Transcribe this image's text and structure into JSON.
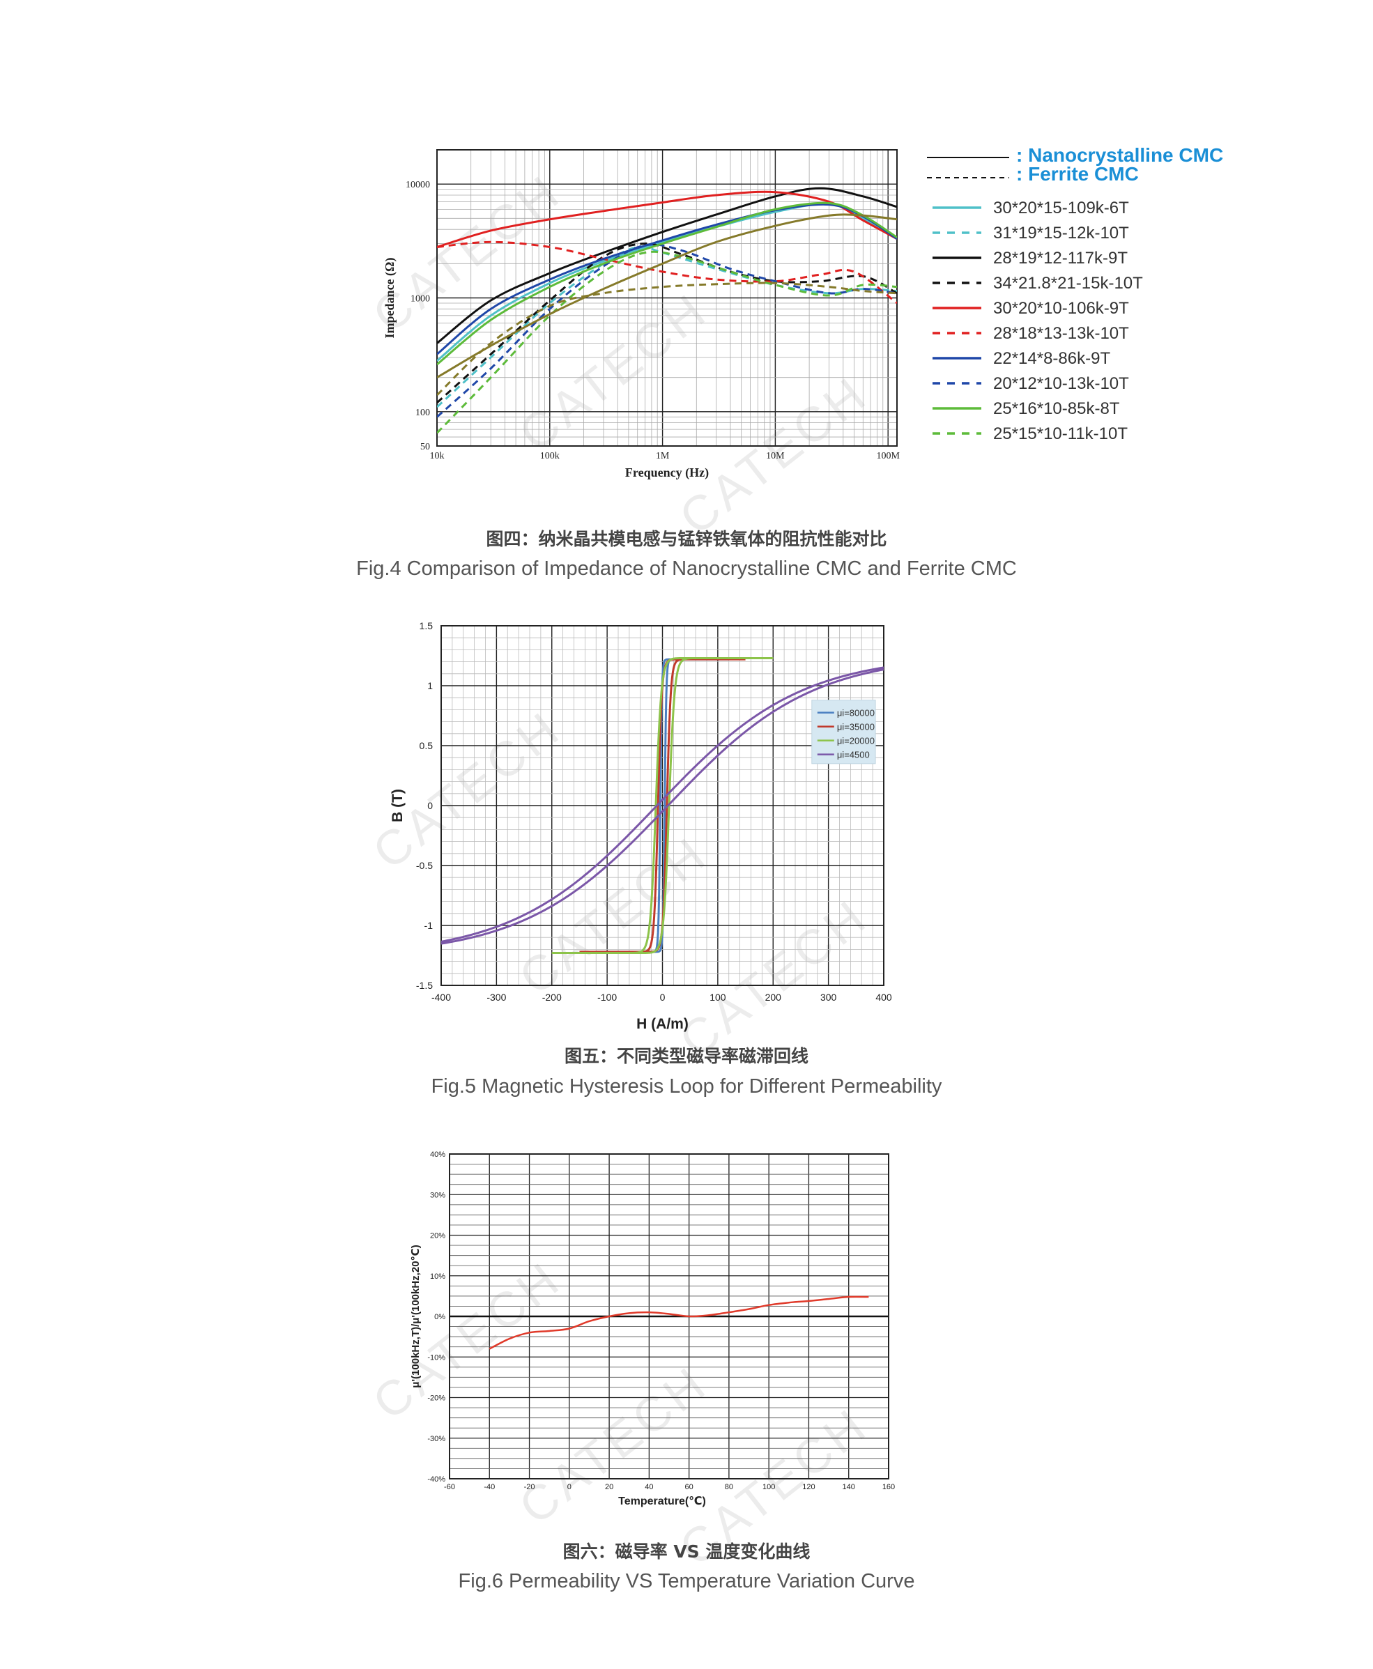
{
  "chart_data": [
    {
      "type": "line",
      "title": "",
      "xlabel": "Frequency (Hz)",
      "ylabel": "Impedance (Ω)",
      "xscale": "log",
      "yscale": "log",
      "xlim": [
        10000,
        120000000
      ],
      "ylim": [
        50,
        20000
      ],
      "xticks": [
        {
          "v": 10000,
          "label": "10k"
        },
        {
          "v": 100000,
          "label": "100k"
        },
        {
          "v": 1000000,
          "label": "1M"
        },
        {
          "v": 10000000,
          "label": "10M"
        },
        {
          "v": 100000000,
          "label": "100M"
        }
      ],
      "yticks": [
        {
          "v": 50,
          "label": "50"
        },
        {
          "v": 100,
          "label": "100"
        },
        {
          "v": 1000,
          "label": "1000"
        },
        {
          "v": 10000,
          "label": "10000"
        }
      ],
      "grid": true,
      "legend_position": "right",
      "legend_title_solid": ": Nanocrystalline CMC",
      "legend_title_dashed": ": Ferrite CMC",
      "series": [
        {
          "name": "30*20*15-109k-6T",
          "color": "#4fc0c8",
          "dash": false,
          "x": [
            10000,
            30000,
            100000,
            300000,
            1000000,
            3000000,
            10000000,
            30000000,
            60000000,
            120000000
          ],
          "y": [
            280,
            700,
            1350,
            2100,
            3100,
            4200,
            5700,
            6700,
            5000,
            3300
          ]
        },
        {
          "name": "31*19*15-12k-10T",
          "color": "#4fc0c8",
          "dash": true,
          "x": [
            10000,
            30000,
            100000,
            300000,
            600000,
            1000000,
            3000000,
            10000000,
            30000000,
            60000000,
            120000000
          ],
          "y": [
            110,
            300,
            900,
            2000,
            2800,
            2500,
            1800,
            1300,
            1100,
            1200,
            1150
          ]
        },
        {
          "name": "28*19*12-117k-9T",
          "color": "#111111",
          "dash": false,
          "x": [
            10000,
            30000,
            100000,
            300000,
            1000000,
            3000000,
            10000000,
            25000000,
            60000000,
            120000000
          ],
          "y": [
            400,
            950,
            1650,
            2500,
            3800,
            5400,
            7800,
            9200,
            7800,
            6300
          ]
        },
        {
          "name": "34*21.8*21-15k-10T",
          "color": "#111111",
          "dash": true,
          "x": [
            10000,
            30000,
            100000,
            300000,
            700000,
            1500000,
            4000000,
            10000000,
            25000000,
            60000000,
            120000000
          ],
          "y": [
            120,
            320,
            950,
            2300,
            3000,
            2400,
            1700,
            1400,
            1400,
            1550,
            1100
          ]
        },
        {
          "name": "30*20*10-106k-9T",
          "color": "#e02020",
          "dash": false,
          "x": [
            10000,
            30000,
            100000,
            300000,
            1000000,
            3000000,
            10000000,
            30000000,
            60000000,
            120000000
          ],
          "y": [
            2800,
            3900,
            4900,
            5800,
            6900,
            8000,
            8500,
            7000,
            4800,
            3300
          ]
        },
        {
          "name": "28*18*13-13k-10T",
          "color": "#e02020",
          "dash": true,
          "x": [
            10000,
            30000,
            100000,
            300000,
            1000000,
            3000000,
            10000000,
            25000000,
            50000000,
            120000000
          ],
          "y": [
            2800,
            3100,
            2800,
            2200,
            1700,
            1450,
            1400,
            1600,
            1700,
            900
          ]
        },
        {
          "name": "22*14*8-86k-9T",
          "color": "#1f47a8",
          "dash": false,
          "x": [
            10000,
            30000,
            100000,
            300000,
            1000000,
            3000000,
            10000000,
            30000000,
            60000000,
            120000000
          ],
          "y": [
            320,
            800,
            1450,
            2200,
            3200,
            4400,
            5900,
            6600,
            5200,
            3300
          ]
        },
        {
          "name": "20*12*10-13k-10T",
          "color": "#1f47a8",
          "dash": true,
          "x": [
            10000,
            30000,
            100000,
            300000,
            700000,
            1500000,
            4000000,
            10000000,
            30000000,
            60000000,
            120000000
          ],
          "y": [
            90,
            240,
            800,
            1900,
            2900,
            2600,
            1800,
            1400,
            1100,
            1200,
            1100
          ]
        },
        {
          "name": "25*16*10-85k-8T",
          "color": "#5dbb3a",
          "dash": false,
          "x": [
            10000,
            30000,
            100000,
            300000,
            1000000,
            3000000,
            10000000,
            30000000,
            60000000,
            120000000
          ],
          "y": [
            260,
            640,
            1250,
            2000,
            3000,
            4200,
            6000,
            6800,
            5300,
            3400
          ]
        },
        {
          "name": "25*15*10-11k-10T",
          "color": "#5dbb3a",
          "dash": true,
          "x": [
            10000,
            30000,
            100000,
            300000,
            700000,
            1500000,
            4000000,
            10000000,
            30000000,
            60000000,
            120000000
          ],
          "y": [
            65,
            200,
            700,
            1700,
            2500,
            2300,
            1700,
            1300,
            1050,
            1300,
            1250
          ]
        },
        {
          "name": "",
          "color": "#857a2a",
          "dash": false,
          "x": [
            10000,
            30000,
            100000,
            300000,
            1000000,
            3000000,
            10000000,
            30000000,
            60000000,
            120000000
          ],
          "y": [
            200,
            380,
            720,
            1200,
            2000,
            3100,
            4300,
            5300,
            5300,
            4900
          ]
        },
        {
          "name": "",
          "color": "#857a2a",
          "dash": true,
          "x": [
            10000,
            30000,
            100000,
            300000,
            1000000,
            3000000,
            10000000,
            30000000,
            60000000,
            120000000
          ],
          "y": [
            140,
            400,
            850,
            1100,
            1250,
            1320,
            1350,
            1250,
            1150,
            1100
          ]
        }
      ]
    },
    {
      "type": "line",
      "title": "",
      "xlabel": "H (A/m)",
      "ylabel": "B (T)",
      "xlim": [
        -400,
        400
      ],
      "ylim": [
        -1.5,
        1.5
      ],
      "xticks": [
        -400,
        -300,
        -200,
        -100,
        0,
        100,
        200,
        300,
        400
      ],
      "yticks": [
        -1.5,
        -1,
        -0.5,
        0,
        0.5,
        1,
        1.5
      ],
      "ytick_labels": [
        "-1.5",
        "-1",
        "-0.5",
        "0",
        "0.5",
        "1",
        "1.5"
      ],
      "grid": true,
      "legend_position": "top-right",
      "series": [
        {
          "name": "μi=80000",
          "color": "#4a7fc1",
          "Bs": 1.22,
          "Hc": 4,
          "width": 3,
          "Hmax": 120
        },
        {
          "name": "μi=35000",
          "color": "#c0392b",
          "Bs": 1.22,
          "Hc": 8,
          "width": 7,
          "Hmax": 150
        },
        {
          "name": "μi=20000",
          "color": "#8dc34a",
          "Bs": 1.23,
          "Hc": 12,
          "width": 10,
          "Hmax": 200
        },
        {
          "name": "μi=4500",
          "color": "#7b57a8",
          "Bs": 1.23,
          "Hc": 10,
          "linear": true,
          "Hmax": 400
        }
      ]
    },
    {
      "type": "line",
      "title": "",
      "xlabel": "Temperature(℃)",
      "ylabel": "μ'(100kHz,T)/μ'(100kHz,20℃)",
      "xlim": [
        -60,
        160
      ],
      "ylim": [
        -40,
        40
      ],
      "xticks": [
        -60,
        -40,
        -20,
        0,
        20,
        40,
        60,
        80,
        100,
        120,
        140,
        160
      ],
      "yticks": [
        -40,
        -30,
        -20,
        -10,
        0,
        10,
        20,
        30,
        40
      ],
      "ytick_labels": [
        "-40%",
        "-30%",
        "-20%",
        "-10%",
        "0%",
        "10%",
        "20%",
        "30%",
        "40%"
      ],
      "grid": true,
      "series": [
        {
          "name": "",
          "color": "#e03a2a",
          "x": [
            -40,
            -30,
            -20,
            -10,
            0,
            10,
            20,
            30,
            40,
            50,
            60,
            70,
            80,
            90,
            100,
            110,
            120,
            130,
            140,
            150
          ],
          "y": [
            -8,
            -5.5,
            -4,
            -3.6,
            -3,
            -1.2,
            0,
            0.8,
            1,
            0.6,
            0,
            0.3,
            1,
            1.8,
            2.8,
            3.4,
            3.8,
            4.3,
            4.8,
            4.8
          ]
        }
      ]
    }
  ],
  "captions": {
    "fig4_cn": "图四：纳米晶共模电感与锰锌铁氧体的阻抗性能对比",
    "fig4_en": "Fig.4 Comparison of Impedance of Nanocrystalline CMC and  Ferrite CMC",
    "fig5_cn": "图五：不同类型磁导率磁滞回线",
    "fig5_en": "Fig.5 Magnetic Hysteresis Loop for Different Permeability",
    "fig6_cn": "图六：磁导率 VS 温度变化曲线",
    "fig6_en": "Fig.6 Permeability VS Temperature Variation Curve"
  },
  "watermark": "CATECH"
}
